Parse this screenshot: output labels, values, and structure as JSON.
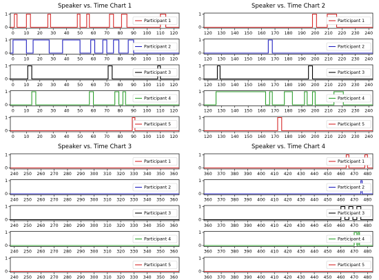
{
  "chart_data": [
    {
      "type": "line",
      "title": "Speaker vs. Time Chart 1",
      "xlim": [
        -2,
        124
      ],
      "ylim": [
        0,
        1
      ],
      "xticks": [
        0,
        10,
        20,
        30,
        40,
        50,
        60,
        70,
        80,
        90,
        100,
        110,
        120
      ],
      "yticks": [
        0,
        1
      ],
      "legend_position": "right",
      "series": [
        {
          "name": "Participant 1",
          "color": "#d62728",
          "intervals": [
            [
              1,
              3
            ],
            [
              10,
              13
            ],
            [
              26,
              28
            ],
            [
              48,
              50
            ],
            [
              55,
              57
            ],
            [
              72,
              75
            ],
            [
              81,
              85
            ],
            [
              110,
              114
            ]
          ]
        },
        {
          "name": "Participant 2",
          "color": "#1f1fbf",
          "intervals": [
            [
              0,
              10
            ],
            [
              15,
              27
            ],
            [
              37,
              50
            ],
            [
              58,
              61
            ],
            [
              67,
              70
            ],
            [
              75,
              79
            ],
            [
              86,
              90
            ]
          ]
        },
        {
          "name": "Participant 3",
          "color": "#000000",
          "intervals": [
            [
              11,
              14
            ],
            [
              71,
              74
            ],
            [
              108,
              110
            ]
          ]
        },
        {
          "name": "Participant 4",
          "color": "#2ca02c",
          "intervals": [
            [
              14,
              17
            ],
            [
              57,
              60
            ],
            [
              76,
              79
            ],
            [
              82,
              84
            ]
          ]
        },
        {
          "name": "Participant 5",
          "color": "#d62728",
          "intervals": [
            [
              89,
              91
            ]
          ]
        }
      ]
    },
    {
      "type": "line",
      "title": "Speaker vs. Time Chart 2",
      "xlim": [
        117,
        243
      ],
      "ylim": [
        0,
        1
      ],
      "xticks": [
        120,
        130,
        140,
        150,
        160,
        170,
        180,
        190,
        200,
        210,
        220,
        230,
        240
      ],
      "yticks": [
        0,
        1
      ],
      "legend_position": "right",
      "series": [
        {
          "name": "Participant 1",
          "color": "#d62728",
          "intervals": [
            [
              198,
              201
            ],
            [
              209,
              216
            ]
          ]
        },
        {
          "name": "Participant 2",
          "color": "#1f1fbf",
          "intervals": [
            [
              165,
              168
            ]
          ]
        },
        {
          "name": "Participant 3",
          "color": "#000000",
          "intervals": [
            [
              127,
              129
            ],
            [
              195,
              198
            ]
          ]
        },
        {
          "name": "Participant 4",
          "color": "#2ca02c",
          "intervals": [
            [
              126,
              163
            ],
            [
              166,
              168
            ],
            [
              177,
              183
            ],
            [
              192,
              194
            ],
            [
              198,
              200
            ],
            [
              214,
              221
            ]
          ]
        },
        {
          "name": "Participant 5",
          "color": "#d62728",
          "intervals": [
            [
              172,
              175
            ]
          ]
        }
      ]
    },
    {
      "type": "line",
      "title": "Speaker vs. Time Chart 3",
      "xlim": [
        237,
        364
      ],
      "ylim": [
        0,
        1
      ],
      "xticks": [
        240,
        250,
        260,
        270,
        280,
        290,
        300,
        310,
        320,
        330,
        340,
        350,
        360
      ],
      "yticks": [
        0,
        1
      ],
      "legend_position": "right",
      "series": [
        {
          "name": "Participant 1",
          "color": "#d62728",
          "intervals": []
        },
        {
          "name": "Participant 2",
          "color": "#1f1fbf",
          "intervals": []
        },
        {
          "name": "Participant 3",
          "color": "#000000",
          "intervals": []
        },
        {
          "name": "Participant 4",
          "color": "#2ca02c",
          "intervals": []
        },
        {
          "name": "Participant 5",
          "color": "#d62728",
          "intervals": []
        }
      ]
    },
    {
      "type": "line",
      "title": "Speaker vs. Time Chart 4",
      "xlim": [
        357,
        484
      ],
      "ylim": [
        0,
        1
      ],
      "xticks": [
        360,
        370,
        380,
        390,
        400,
        410,
        420,
        430,
        440,
        450,
        460,
        470,
        480
      ],
      "yticks": [
        0,
        1
      ],
      "legend_position": "right",
      "series": [
        {
          "name": "Participant 1",
          "color": "#d62728",
          "intervals": [
            [
              464,
              466
            ],
            [
              478,
              480
            ]
          ]
        },
        {
          "name": "Participant 2",
          "color": "#1f1fbf",
          "intervals": [
            [
              475,
              476
            ]
          ]
        },
        {
          "name": "Participant 3",
          "color": "#000000",
          "intervals": [
            [
              460,
              463
            ],
            [
              466,
              469
            ],
            [
              472,
              475
            ]
          ]
        },
        {
          "name": "Participant 4",
          "color": "#2ca02c",
          "intervals": [
            [
              470,
              472
            ],
            [
              473,
              474
            ]
          ]
        },
        {
          "name": "Participant 5",
          "color": "#d62728",
          "intervals": []
        }
      ]
    }
  ]
}
